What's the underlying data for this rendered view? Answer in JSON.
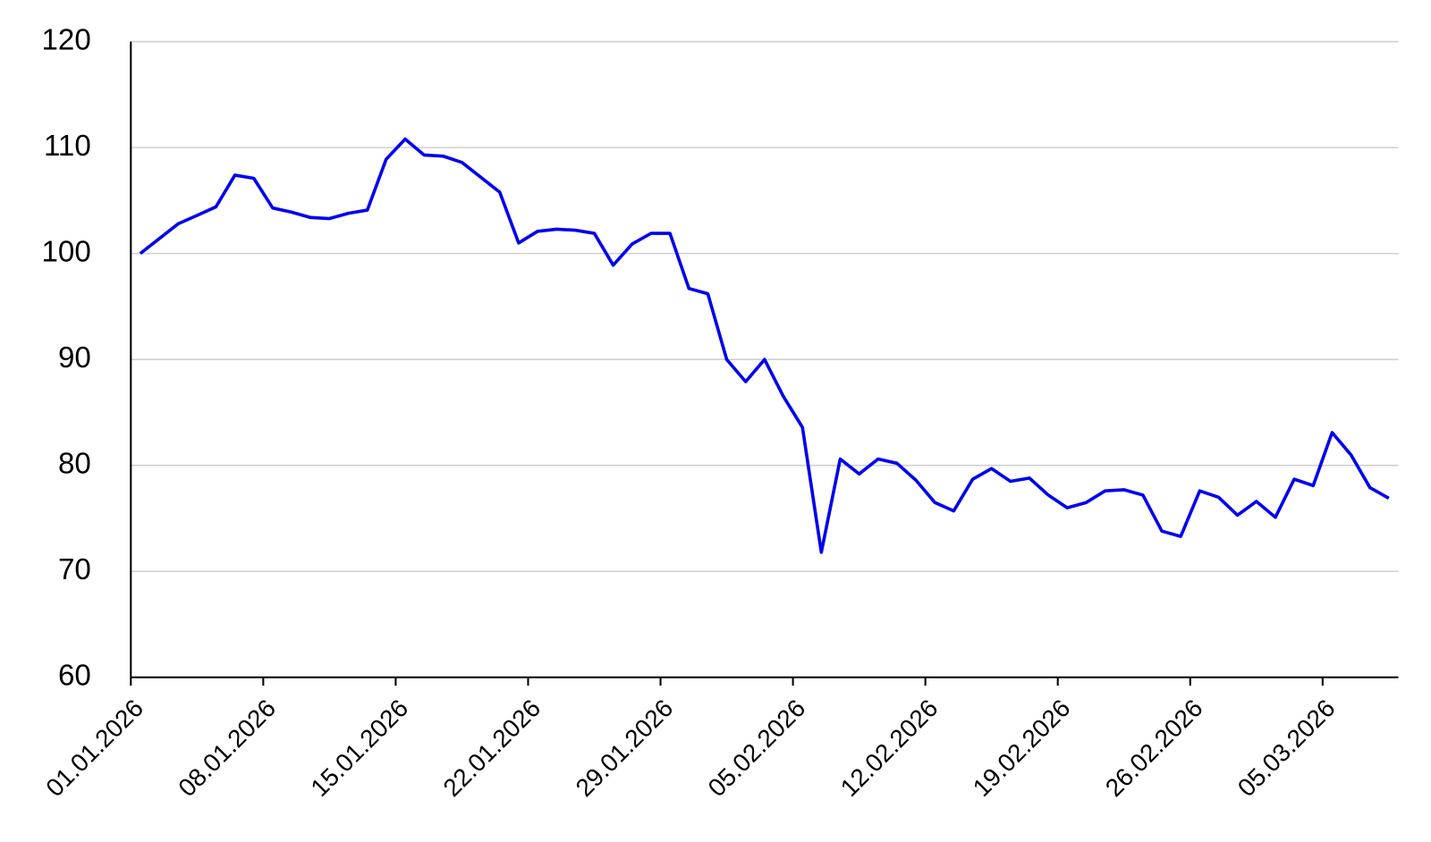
{
  "chart_data": {
    "type": "line",
    "categories": [
      "01.01.2026",
      null,
      null,
      null,
      null,
      null,
      null,
      "08.01.2026",
      null,
      null,
      null,
      null,
      null,
      null,
      "15.01.2026",
      null,
      null,
      null,
      null,
      null,
      null,
      "22.01.2026",
      null,
      null,
      null,
      null,
      null,
      null,
      "29.01.2026",
      null,
      null,
      null,
      null,
      null,
      null,
      "05.02.2026",
      null,
      null,
      null,
      null,
      null,
      null,
      "12.02.2026",
      null,
      null,
      null,
      null,
      null,
      null,
      "19.02.2026",
      null,
      null,
      null,
      null,
      null,
      null,
      "26.02.2026",
      null,
      null,
      null,
      null,
      null,
      null,
      "05.03.2026",
      null,
      null,
      null
    ],
    "series": [
      {
        "color": "#0000ee",
        "values": [
          100.0,
          101.4,
          102.8,
          103.6,
          104.4,
          107.4,
          107.1,
          104.3,
          103.9,
          103.4,
          103.3,
          103.8,
          104.1,
          108.9,
          110.8,
          109.3,
          109.2,
          108.6,
          107.2,
          105.8,
          101.0,
          102.1,
          102.3,
          102.2,
          101.9,
          98.9,
          100.9,
          101.9,
          101.9,
          96.7,
          96.2,
          90.0,
          87.9,
          90.0,
          86.5,
          83.6,
          71.8,
          80.6,
          79.2,
          80.6,
          80.2,
          78.6,
          76.5,
          75.7,
          78.7,
          79.7,
          78.5,
          78.8,
          77.2,
          76.0,
          76.5,
          77.6,
          77.7,
          77.2,
          73.8,
          73.3,
          77.6,
          77.0,
          75.3,
          76.6,
          75.1,
          78.7,
          78.1,
          83.1,
          81.0,
          77.9,
          76.9
        ]
      }
    ],
    "ylim": [
      60,
      120
    ],
    "yticks": [
      60,
      70,
      80,
      90,
      100,
      110,
      120
    ],
    "grid": true
  }
}
